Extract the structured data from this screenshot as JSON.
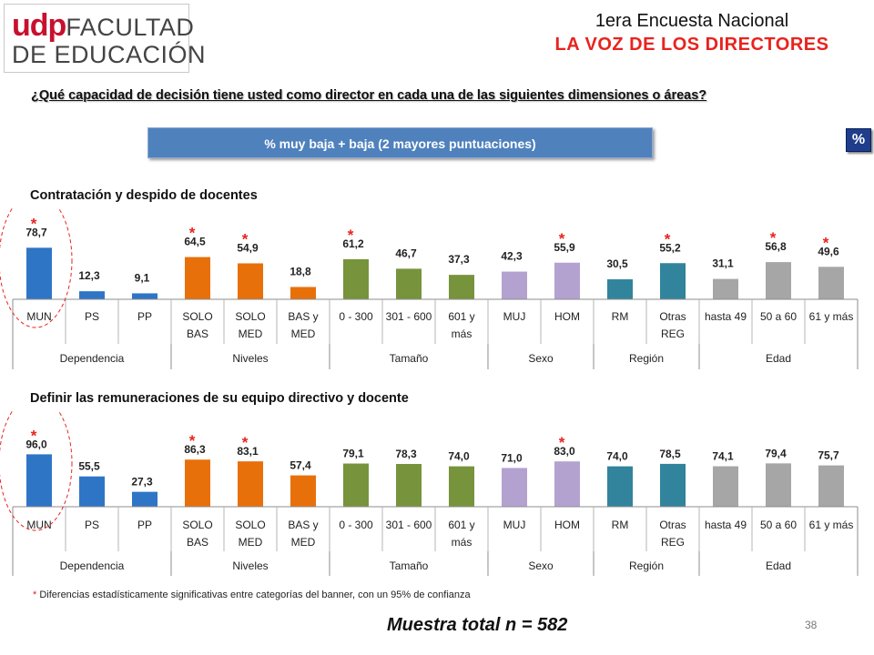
{
  "header": {
    "logo_brand": "udp",
    "logo_line1": "FACULTAD",
    "logo_line2": "DE EDUCACIÓN",
    "title_line1": "1era Encuesta Nacional",
    "title_line2": "LA VOZ DE LOS DIRECTORES"
  },
  "question": "¿Qué capacidad de decisión tiene usted como director en cada una de las siguientes dimensiones o áreas?",
  "banner": "% muy baja + baja (2 mayores puntuaciones)",
  "pct_badge": "%",
  "footnote_marker": "*",
  "footnote": "Diferencias estadísticamente significativas entre categorías del banner, con un 95% de confianza",
  "sample": "Muestra total n = 582",
  "page_number": "38",
  "colors": {
    "Dependencia": "#2e75c6",
    "Niveles": "#e8700a",
    "Tamaño": "#77933c",
    "Sexo": "#b3a2d0",
    "Región": "#31849b",
    "Edad": "#a6a6a6",
    "significance": "#e8231e"
  },
  "chart_data": [
    {
      "type": "bar",
      "title": "Contratación y despido de docentes",
      "categories": [
        "MUN",
        "PS",
        "PP",
        "SOLO BAS",
        "SOLO MED",
        "BAS y MED",
        "0 - 300",
        "301 - 600",
        "601 y más",
        "MUJ",
        "HOM",
        "RM",
        "Otras REG",
        "hasta 49",
        "50 a 60",
        "61 y más"
      ],
      "groups": [
        {
          "name": "Dependencia",
          "count": 3
        },
        {
          "name": "Niveles",
          "count": 3
        },
        {
          "name": "Tamaño",
          "count": 3
        },
        {
          "name": "Sexo",
          "count": 2
        },
        {
          "name": "Región",
          "count": 2
        },
        {
          "name": "Edad",
          "count": 3
        }
      ],
      "values": [
        78.7,
        12.3,
        9.1,
        64.5,
        54.9,
        18.8,
        61.2,
        46.7,
        37.3,
        42.3,
        55.9,
        30.5,
        55.2,
        31.1,
        56.8,
        49.6
      ],
      "value_labels": [
        "78,7",
        "12,3",
        "9,1",
        "64,5",
        "54,9",
        "18,8",
        "61,2",
        "46,7",
        "37,3",
        "42,3",
        "55,9",
        "30,5",
        "55,2",
        "31,1",
        "56,8",
        "49,6"
      ],
      "significant": [
        true,
        false,
        false,
        true,
        true,
        false,
        true,
        false,
        false,
        false,
        true,
        false,
        true,
        false,
        true,
        true
      ],
      "highlight_circle": "MUN",
      "ylim": [
        0,
        100
      ]
    },
    {
      "type": "bar",
      "title": "Definir las remuneraciones de su equipo directivo y docente",
      "categories": [
        "MUN",
        "PS",
        "PP",
        "SOLO BAS",
        "SOLO MED",
        "BAS y MED",
        "0 - 300",
        "301 - 600",
        "601 y más",
        "MUJ",
        "HOM",
        "RM",
        "Otras REG",
        "hasta 49",
        "50 a 60",
        "61 y más"
      ],
      "groups": [
        {
          "name": "Dependencia",
          "count": 3
        },
        {
          "name": "Niveles",
          "count": 3
        },
        {
          "name": "Tamaño",
          "count": 3
        },
        {
          "name": "Sexo",
          "count": 2
        },
        {
          "name": "Región",
          "count": 2
        },
        {
          "name": "Edad",
          "count": 3
        }
      ],
      "values": [
        96.0,
        55.5,
        27.3,
        86.3,
        83.1,
        57.4,
        79.1,
        78.3,
        74.0,
        71.0,
        83.0,
        74.0,
        78.5,
        74.1,
        79.4,
        75.7
      ],
      "value_labels": [
        "96,0",
        "55,5",
        "27,3",
        "86,3",
        "83,1",
        "57,4",
        "79,1",
        "78,3",
        "74,0",
        "71,0",
        "83,0",
        "74,0",
        "78,5",
        "74,1",
        "79,4",
        "75,7"
      ],
      "significant": [
        true,
        false,
        false,
        true,
        true,
        false,
        false,
        false,
        false,
        false,
        true,
        false,
        false,
        false,
        false,
        false
      ],
      "highlight_circle": "MUN",
      "ylim": [
        0,
        100
      ]
    }
  ]
}
